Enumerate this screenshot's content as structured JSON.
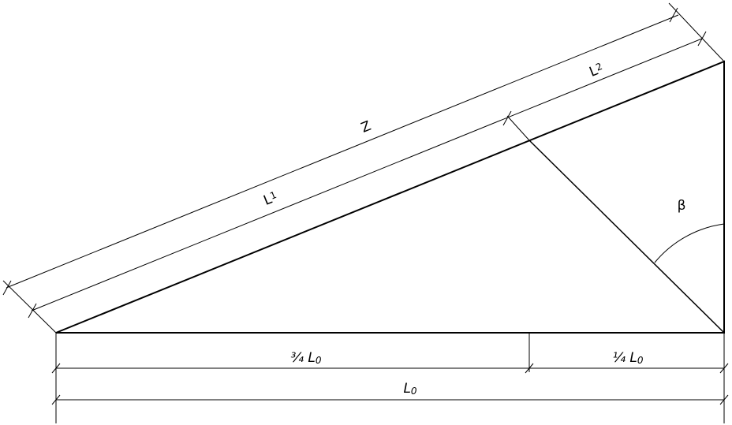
{
  "labels": {
    "z": "Z",
    "l1": {
      "main": "L",
      "sub": "1"
    },
    "l2": {
      "main": "L",
      "sub": "2"
    },
    "beta": "β",
    "three_quarter_l0": {
      "main": "¾ L",
      "sub": "0"
    },
    "quarter_l0": {
      "main": "¼ L",
      "sub": "0"
    },
    "l0": {
      "main": "L",
      "sub": "0"
    }
  }
}
